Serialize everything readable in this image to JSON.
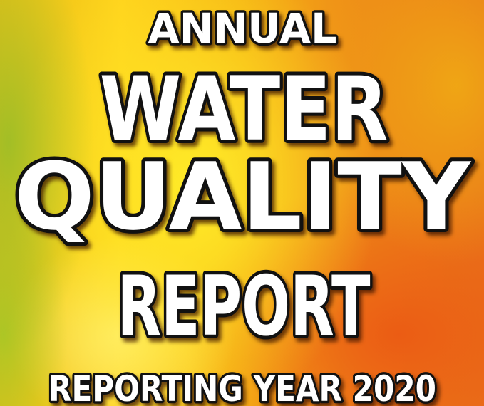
{
  "cover": {
    "heading": [
      "ANNUAL",
      "WATER",
      "QUALITY",
      "REPORT"
    ],
    "subtitle": "REPORTING YEAR 2020"
  }
}
